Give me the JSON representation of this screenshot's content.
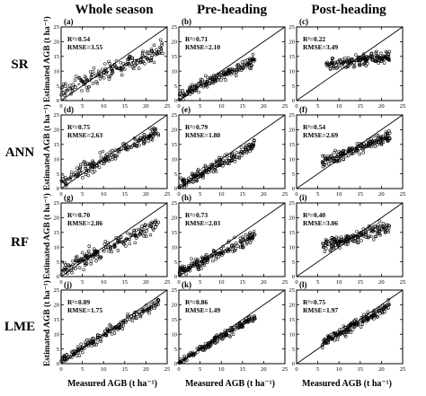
{
  "columns": [
    "Whole season",
    "Pre-heading",
    "Post-heading"
  ],
  "rows": [
    "SR",
    "ANN",
    "RF",
    "LME"
  ],
  "ylabel": "Estimated AGB (t ha⁻¹)",
  "xlabel": "Measured AGB (t ha⁻¹)",
  "chart_data": {
    "type": "scatter",
    "xlim": [
      0,
      25
    ],
    "ylim": [
      0,
      25
    ],
    "xticks": [
      0,
      5,
      10,
      15,
      20,
      25
    ],
    "yticks": [
      0,
      5,
      10,
      15,
      20,
      25
    ],
    "reference_line": "1:1",
    "panels": [
      {
        "label": "(a)",
        "row": "SR",
        "column": "Whole season",
        "r2": "R²=0.54",
        "rmse": "RMSE=3.55",
        "fit": [
          {
            "x": 0,
            "y": 3
          },
          {
            "x": 23,
            "y": 17
          }
        ],
        "spread": 3.0,
        "xrange": [
          0,
          24
        ]
      },
      {
        "label": "(b)",
        "row": "SR",
        "column": "Pre-heading",
        "r2": "R²=0.71",
        "rmse": "RMSE=2.10",
        "fit": [
          {
            "x": 0,
            "y": 1.5
          },
          {
            "x": 18,
            "y": 14
          }
        ],
        "spread": 2.0,
        "xrange": [
          0,
          18
        ]
      },
      {
        "label": "(c)",
        "row": "SR",
        "column": "Post-heading",
        "r2": "R²=0.22",
        "rmse": "RMSE=3.49",
        "fit": [
          {
            "x": 7,
            "y": 12
          },
          {
            "x": 22,
            "y": 15
          }
        ],
        "spread": 2.0,
        "xrange": [
          7,
          22
        ]
      },
      {
        "label": "(d)",
        "row": "ANN",
        "column": "Whole season",
        "r2": "R²=0.75",
        "rmse": "RMSE=2.63",
        "fit": [
          {
            "x": 0,
            "y": 2
          },
          {
            "x": 22,
            "y": 19
          }
        ],
        "spread": 2.5,
        "xrange": [
          0,
          23
        ]
      },
      {
        "label": "(e)",
        "row": "ANN",
        "column": "Pre-heading",
        "r2": "R²=0.79",
        "rmse": "RMSE=1.80",
        "fit": [
          {
            "x": 0,
            "y": 1
          },
          {
            "x": 18,
            "y": 15
          }
        ],
        "spread": 1.8,
        "xrange": [
          0,
          18
        ]
      },
      {
        "label": "(f)",
        "row": "ANN",
        "column": "Post-heading",
        "r2": "R²=0.54",
        "rmse": "RMSE=2.69",
        "fit": [
          {
            "x": 6,
            "y": 9
          },
          {
            "x": 22,
            "y": 18
          }
        ],
        "spread": 2.3,
        "xrange": [
          6,
          22
        ]
      },
      {
        "label": "(g)",
        "row": "RF",
        "column": "Whole season",
        "r2": "R²=0.70",
        "rmse": "RMSE=2.86",
        "fit": [
          {
            "x": 0,
            "y": 2
          },
          {
            "x": 23,
            "y": 18
          }
        ],
        "spread": 2.6,
        "xrange": [
          0,
          23
        ]
      },
      {
        "label": "(h)",
        "row": "RF",
        "column": "Pre-heading",
        "r2": "R²=0.73",
        "rmse": "RMSE=2.03",
        "fit": [
          {
            "x": 0,
            "y": 1.5
          },
          {
            "x": 18,
            "y": 14
          }
        ],
        "spread": 2.0,
        "xrange": [
          0,
          18
        ]
      },
      {
        "label": "(i)",
        "row": "RF",
        "column": "Post-heading",
        "r2": "R²=0.40",
        "rmse": "RMSE=3.06",
        "fit": [
          {
            "x": 6,
            "y": 10
          },
          {
            "x": 22,
            "y": 17
          }
        ],
        "spread": 2.4,
        "xrange": [
          6,
          22
        ]
      },
      {
        "label": "(j)",
        "row": "LME",
        "column": "Whole season",
        "r2": "R²=0.89",
        "rmse": "RMSE=1.75",
        "fit": [
          {
            "x": 0,
            "y": 1
          },
          {
            "x": 23,
            "y": 21
          }
        ],
        "spread": 1.6,
        "xrange": [
          0,
          23
        ]
      },
      {
        "label": "(k)",
        "row": "LME",
        "column": "Pre-heading",
        "r2": "R²=0.86",
        "rmse": "RMSE=1.49",
        "fit": [
          {
            "x": 0,
            "y": 0.5
          },
          {
            "x": 18,
            "y": 16
          }
        ],
        "spread": 1.4,
        "xrange": [
          0,
          18
        ]
      },
      {
        "label": "(l)",
        "row": "LME",
        "column": "Post-heading",
        "r2": "R²=0.75",
        "rmse": "RMSE=1.97",
        "fit": [
          {
            "x": 6,
            "y": 7
          },
          {
            "x": 22,
            "y": 20
          }
        ],
        "spread": 1.8,
        "xrange": [
          6,
          22
        ]
      }
    ]
  }
}
